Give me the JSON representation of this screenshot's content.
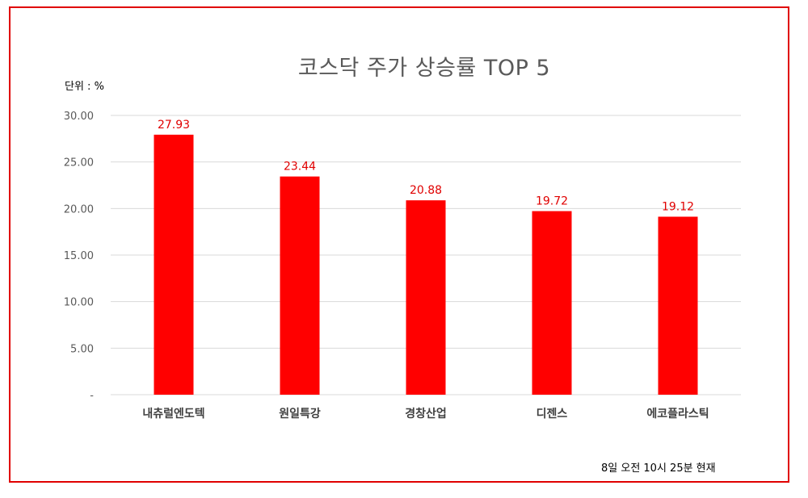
{
  "chart_data": {
    "type": "bar",
    "title": "코스닥 주가 상승률 TOP 5",
    "unit_label": "단위 : %",
    "footnote": "8일  오전  10시 25분  현재",
    "categories": [
      "내츄럴엔도텍",
      "원일특강",
      "경창산업",
      "디젠스",
      "에코플라스틱"
    ],
    "values": [
      27.93,
      23.44,
      20.88,
      19.72,
      19.12
    ],
    "data_labels": [
      "27.93",
      "23.44",
      "20.88",
      "19.72",
      "19.12"
    ],
    "ylim": [
      0,
      30
    ],
    "yticks": [
      0,
      5,
      10,
      15,
      20,
      25,
      30
    ],
    "ytick_labels": [
      "-",
      "5.00",
      "10.00",
      "15.00",
      "20.00",
      "25.00",
      "30.00"
    ],
    "grid": true,
    "legend": "none",
    "colors": {
      "bar": "#ff0000",
      "data_label": "#e00000",
      "frame": "#e00000",
      "grid": "#d9d9d9"
    }
  }
}
